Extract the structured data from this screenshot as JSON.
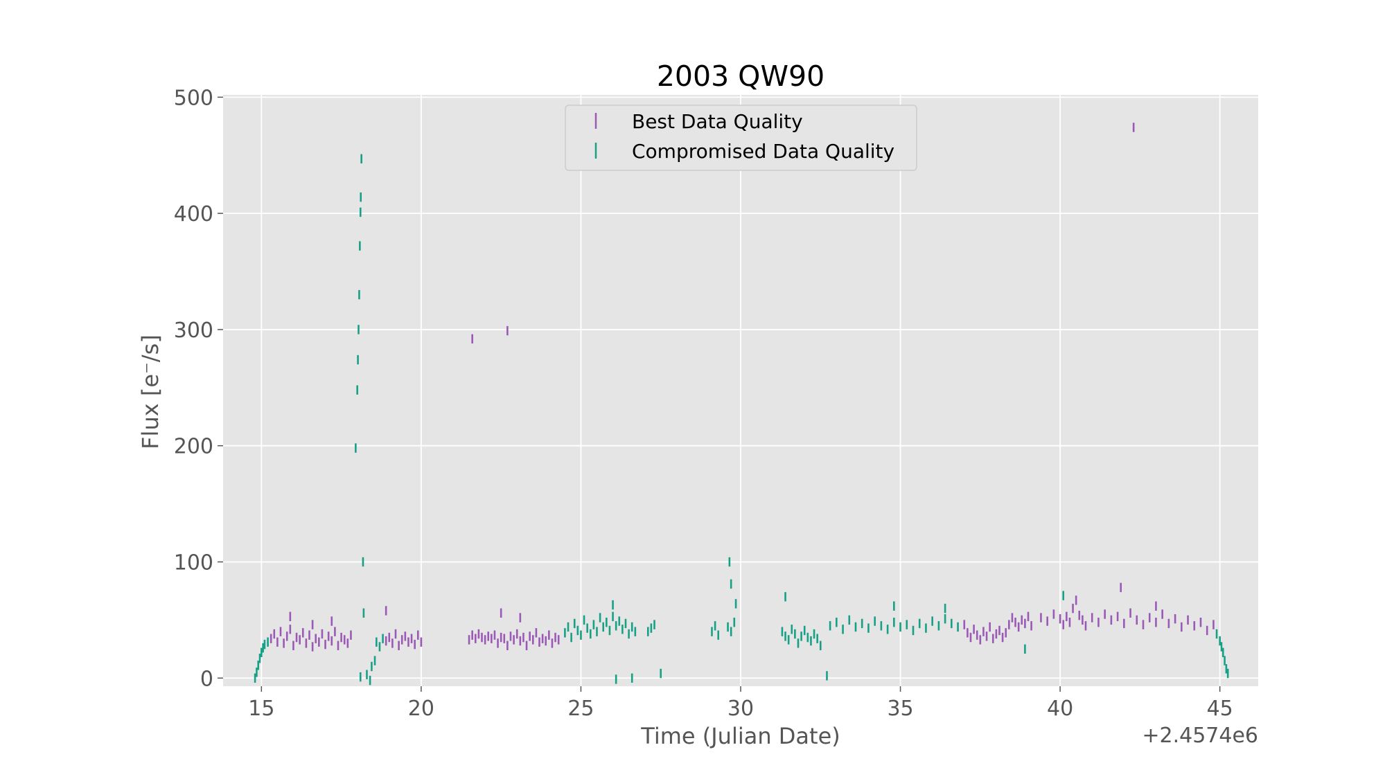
{
  "chart_data": {
    "type": "scatter",
    "title": "2003 QW90",
    "xlabel": "Time (Julian Date)",
    "ylabel": "Flux [e⁻/s]",
    "x_offset_label": "+2.4574e6",
    "xlim": [
      13.8,
      46.2
    ],
    "ylim": [
      -7,
      502
    ],
    "xticks": [
      15,
      20,
      25,
      30,
      35,
      40,
      45
    ],
    "xtick_labels": [
      "15",
      "20",
      "25",
      "30",
      "35",
      "40",
      "45"
    ],
    "yticks": [
      0,
      100,
      200,
      300,
      400,
      500
    ],
    "ytick_labels": [
      "0",
      "100",
      "200",
      "300",
      "400",
      "500"
    ],
    "grid": true,
    "background": "#e5e5e5",
    "legend": {
      "placement": "upper-center"
    },
    "error_bar_half_height": 4,
    "series": [
      {
        "name": "Best Data Quality",
        "color": "#9b59b6",
        "points": [
          [
            15.3,
            34
          ],
          [
            15.4,
            38
          ],
          [
            15.5,
            31
          ],
          [
            15.6,
            40
          ],
          [
            15.7,
            30
          ],
          [
            15.8,
            36
          ],
          [
            15.9,
            42
          ],
          [
            16.0,
            28
          ],
          [
            16.1,
            35
          ],
          [
            16.2,
            33
          ],
          [
            16.3,
            39
          ],
          [
            16.4,
            30
          ],
          [
            16.5,
            37
          ],
          [
            16.6,
            27
          ],
          [
            16.7,
            34
          ],
          [
            16.8,
            31
          ],
          [
            16.9,
            38
          ],
          [
            17.0,
            29
          ],
          [
            17.1,
            36
          ],
          [
            17.2,
            32
          ],
          [
            17.3,
            40
          ],
          [
            17.4,
            28
          ],
          [
            17.5,
            35
          ],
          [
            17.6,
            33
          ],
          [
            17.7,
            30
          ],
          [
            17.8,
            37
          ],
          [
            15.9,
            53
          ],
          [
            16.6,
            46
          ],
          [
            17.2,
            49
          ],
          [
            18.9,
            32
          ],
          [
            19.0,
            35
          ],
          [
            19.1,
            30
          ],
          [
            19.2,
            38
          ],
          [
            19.3,
            28
          ],
          [
            19.4,
            33
          ],
          [
            19.5,
            36
          ],
          [
            19.6,
            31
          ],
          [
            19.7,
            34
          ],
          [
            19.8,
            29
          ],
          [
            19.9,
            37
          ],
          [
            20.0,
            31
          ],
          [
            18.9,
            58
          ],
          [
            21.5,
            33
          ],
          [
            21.6,
            37
          ],
          [
            21.7,
            34
          ],
          [
            21.8,
            38
          ],
          [
            21.9,
            35
          ],
          [
            22.0,
            33
          ],
          [
            22.1,
            36
          ],
          [
            22.2,
            34
          ],
          [
            22.3,
            37
          ],
          [
            22.4,
            30
          ],
          [
            22.5,
            35
          ],
          [
            22.6,
            34
          ],
          [
            22.7,
            28
          ],
          [
            22.8,
            36
          ],
          [
            22.9,
            33
          ],
          [
            23.0,
            38
          ],
          [
            23.1,
            32
          ],
          [
            23.2,
            35
          ],
          [
            23.3,
            28
          ],
          [
            23.4,
            36
          ],
          [
            23.5,
            33
          ],
          [
            23.6,
            39
          ],
          [
            23.7,
            31
          ],
          [
            23.8,
            34
          ],
          [
            23.9,
            32
          ],
          [
            24.0,
            37
          ],
          [
            24.1,
            30
          ],
          [
            24.2,
            35
          ],
          [
            24.3,
            33
          ],
          [
            22.5,
            56
          ],
          [
            23.1,
            52
          ],
          [
            21.6,
            292
          ],
          [
            22.7,
            299
          ],
          [
            37.0,
            46
          ],
          [
            37.1,
            39
          ],
          [
            37.2,
            35
          ],
          [
            37.3,
            42
          ],
          [
            37.4,
            37
          ],
          [
            37.5,
            33
          ],
          [
            37.6,
            40
          ],
          [
            37.7,
            36
          ],
          [
            37.8,
            44
          ],
          [
            37.9,
            34
          ],
          [
            38.0,
            38
          ],
          [
            38.1,
            41
          ],
          [
            38.2,
            35
          ],
          [
            38.3,
            39
          ],
          [
            38.4,
            46
          ],
          [
            38.5,
            52
          ],
          [
            38.6,
            48
          ],
          [
            38.7,
            44
          ],
          [
            38.8,
            50
          ],
          [
            38.9,
            47
          ],
          [
            39.0,
            53
          ],
          [
            39.1,
            45
          ],
          [
            39.4,
            52
          ],
          [
            39.6,
            49
          ],
          [
            39.8,
            55
          ],
          [
            40.0,
            51
          ],
          [
            40.1,
            46
          ],
          [
            40.2,
            53
          ],
          [
            40.3,
            48
          ],
          [
            40.4,
            60
          ],
          [
            40.5,
            67
          ],
          [
            40.6,
            54
          ],
          [
            40.7,
            50
          ],
          [
            40.8,
            45
          ],
          [
            41.0,
            52
          ],
          [
            41.2,
            48
          ],
          [
            41.4,
            55
          ],
          [
            41.6,
            50
          ],
          [
            41.8,
            53
          ],
          [
            42.0,
            47
          ],
          [
            42.2,
            56
          ],
          [
            42.4,
            50
          ],
          [
            42.6,
            46
          ],
          [
            42.8,
            52
          ],
          [
            43.0,
            48
          ],
          [
            43.2,
            55
          ],
          [
            43.4,
            47
          ],
          [
            43.6,
            51
          ],
          [
            43.8,
            44
          ],
          [
            44.0,
            50
          ],
          [
            44.2,
            45
          ],
          [
            44.4,
            48
          ],
          [
            44.6,
            41
          ],
          [
            44.8,
            46
          ],
          [
            41.9,
            78
          ],
          [
            43.0,
            62
          ],
          [
            42.3,
            474
          ]
        ]
      },
      {
        "name": "Compromised Data Quality",
        "color": "#16a085",
        "points": [
          [
            14.8,
            0
          ],
          [
            14.85,
            5
          ],
          [
            14.9,
            11
          ],
          [
            14.95,
            17
          ],
          [
            15.0,
            22
          ],
          [
            15.05,
            26
          ],
          [
            15.1,
            29
          ],
          [
            15.2,
            31
          ],
          [
            17.95,
            198
          ],
          [
            18.0,
            248
          ],
          [
            18.02,
            274
          ],
          [
            18.04,
            300
          ],
          [
            18.06,
            330
          ],
          [
            18.08,
            372
          ],
          [
            18.1,
            401
          ],
          [
            18.11,
            414
          ],
          [
            18.13,
            447
          ],
          [
            18.18,
            100
          ],
          [
            18.2,
            56
          ],
          [
            18.1,
            1
          ],
          [
            18.3,
            3
          ],
          [
            18.4,
            -2
          ],
          [
            18.45,
            10
          ],
          [
            18.55,
            15
          ],
          [
            18.6,
            31
          ],
          [
            18.7,
            27
          ],
          [
            18.8,
            34
          ],
          [
            24.5,
            39
          ],
          [
            24.6,
            44
          ],
          [
            24.7,
            35
          ],
          [
            24.8,
            47
          ],
          [
            24.9,
            41
          ],
          [
            25.0,
            37
          ],
          [
            25.1,
            50
          ],
          [
            25.2,
            43
          ],
          [
            25.3,
            38
          ],
          [
            25.4,
            46
          ],
          [
            25.5,
            40
          ],
          [
            25.6,
            52
          ],
          [
            25.7,
            44
          ],
          [
            25.8,
            48
          ],
          [
            25.9,
            41
          ],
          [
            26.0,
            53
          ],
          [
            26.1,
            45
          ],
          [
            26.2,
            49
          ],
          [
            26.3,
            42
          ],
          [
            26.4,
            47
          ],
          [
            26.5,
            38
          ],
          [
            26.6,
            44
          ],
          [
            26.7,
            40
          ],
          [
            26.0,
            63
          ],
          [
            27.1,
            40
          ],
          [
            27.2,
            43
          ],
          [
            27.3,
            46
          ],
          [
            26.1,
            -1
          ],
          [
            26.6,
            0
          ],
          [
            27.5,
            4
          ],
          [
            29.1,
            40
          ],
          [
            29.2,
            45
          ],
          [
            29.3,
            37
          ],
          [
            29.6,
            44
          ],
          [
            29.7,
            40
          ],
          [
            29.8,
            48
          ],
          [
            29.65,
            100
          ],
          [
            29.7,
            81
          ],
          [
            29.85,
            64
          ],
          [
            31.3,
            40
          ],
          [
            31.4,
            36
          ],
          [
            31.5,
            33
          ],
          [
            31.6,
            42
          ],
          [
            31.7,
            38
          ],
          [
            31.8,
            30
          ],
          [
            31.9,
            36
          ],
          [
            32.0,
            41
          ],
          [
            32.1,
            35
          ],
          [
            32.2,
            32
          ],
          [
            32.3,
            38
          ],
          [
            32.4,
            34
          ],
          [
            32.5,
            28
          ],
          [
            31.4,
            70
          ],
          [
            32.7,
            2
          ],
          [
            32.8,
            45
          ],
          [
            33.0,
            48
          ],
          [
            33.2,
            42
          ],
          [
            33.4,
            50
          ],
          [
            33.6,
            44
          ],
          [
            33.8,
            47
          ],
          [
            34.0,
            43
          ],
          [
            34.2,
            49
          ],
          [
            34.4,
            45
          ],
          [
            34.6,
            42
          ],
          [
            34.8,
            48
          ],
          [
            35.0,
            44
          ],
          [
            35.2,
            46
          ],
          [
            35.4,
            41
          ],
          [
            35.6,
            47
          ],
          [
            35.8,
            43
          ],
          [
            36.0,
            49
          ],
          [
            36.2,
            45
          ],
          [
            36.4,
            51
          ],
          [
            36.6,
            47
          ],
          [
            36.8,
            44
          ],
          [
            34.8,
            62
          ],
          [
            36.4,
            60
          ],
          [
            38.9,
            25
          ],
          [
            40.1,
            71
          ],
          [
            44.9,
            38
          ],
          [
            45.0,
            32
          ],
          [
            45.05,
            27
          ],
          [
            45.1,
            22
          ],
          [
            45.15,
            15
          ],
          [
            45.2,
            8
          ],
          [
            45.25,
            4
          ]
        ]
      }
    ]
  }
}
